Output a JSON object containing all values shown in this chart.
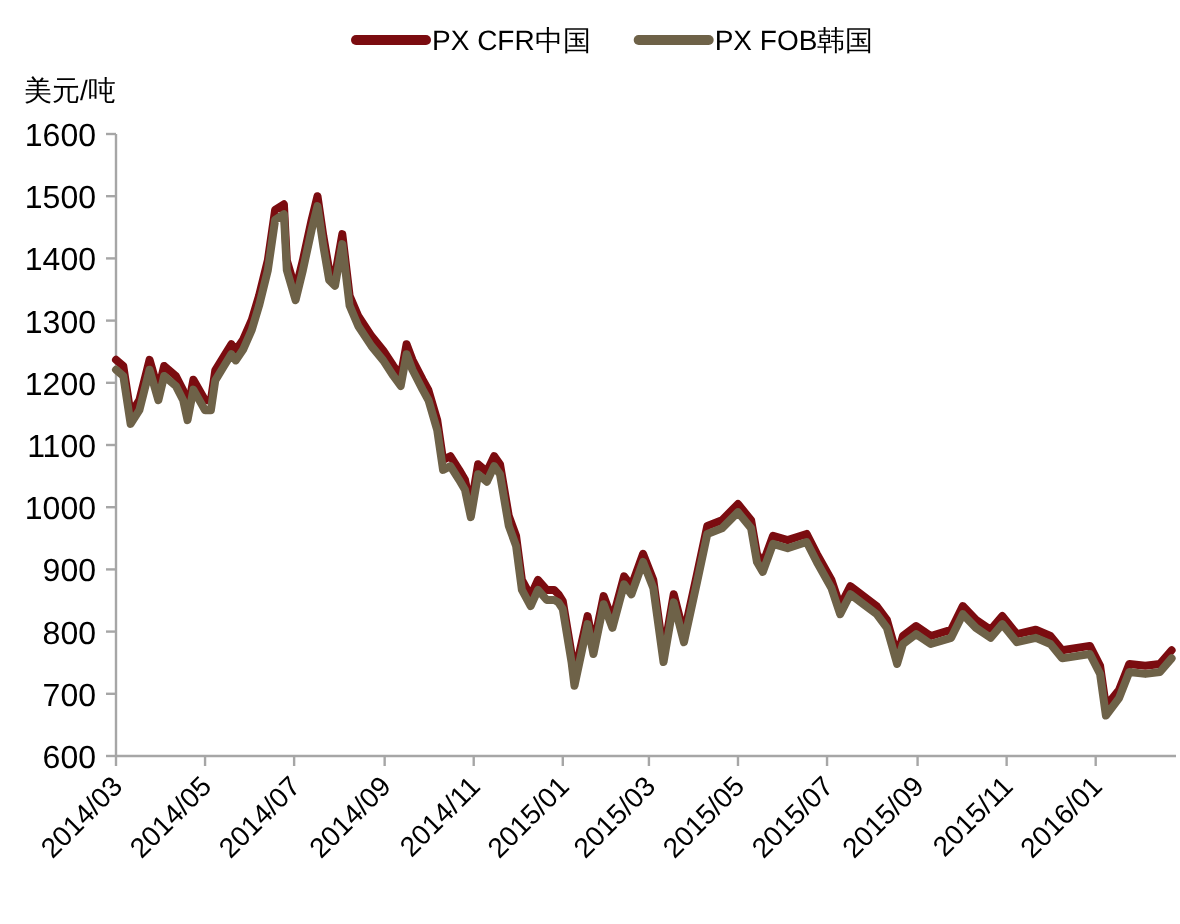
{
  "chart_data": {
    "type": "line",
    "ylabel": "美元/吨",
    "legend": "top",
    "grid": false,
    "x": [
      "2014-03-01",
      "2014-03-06",
      "2014-03-11",
      "2014-03-17",
      "2014-03-24",
      "2014-03-30",
      "2014-04-03",
      "2014-04-11",
      "2014-04-16",
      "2014-04-19",
      "2014-04-23",
      "2014-05-01",
      "2014-05-05",
      "2014-05-08",
      "2014-05-14",
      "2014-05-19",
      "2014-05-22",
      "2014-05-27",
      "2014-06-02",
      "2014-06-07",
      "2014-06-13",
      "2014-06-18",
      "2014-06-24",
      "2014-06-26",
      "2014-07-02",
      "2014-07-07",
      "2014-07-13",
      "2014-07-17",
      "2014-07-21",
      "2014-07-25",
      "2014-07-29",
      "2014-08-03",
      "2014-08-08",
      "2014-08-14",
      "2014-08-23",
      "2014-08-31",
      "2014-09-07",
      "2014-09-12",
      "2014-09-16",
      "2014-09-20",
      "2014-09-27",
      "2014-10-01",
      "2014-10-07",
      "2014-10-11",
      "2014-10-16",
      "2014-10-22",
      "2014-10-26",
      "2014-10-30",
      "2014-11-04",
      "2014-11-10",
      "2014-11-15",
      "2014-11-19",
      "2014-11-25",
      "2014-11-30",
      "2014-12-04",
      "2014-12-10",
      "2014-12-15",
      "2014-12-21",
      "2014-12-26",
      "2014-12-29",
      "2015-01-01",
      "2015-01-07",
      "2015-01-09",
      "2015-01-18",
      "2015-01-22",
      "2015-01-29",
      "2015-02-04",
      "2015-02-12",
      "2015-02-17",
      "2015-02-25",
      "2015-03-04",
      "2015-03-11",
      "2015-03-18",
      "2015-03-25",
      "2015-04-03",
      "2015-04-10",
      "2015-04-20",
      "2015-05-01",
      "2015-05-10",
      "2015-05-14",
      "2015-05-18",
      "2015-05-25",
      "2015-06-04",
      "2015-06-17",
      "2015-06-24",
      "2015-07-04",
      "2015-07-10",
      "2015-07-17",
      "2015-07-26",
      "2015-08-04",
      "2015-08-11",
      "2015-08-18",
      "2015-08-22",
      "2015-08-31",
      "2015-09-10",
      "2015-09-24",
      "2015-10-02",
      "2015-10-11",
      "2015-10-21",
      "2015-10-29",
      "2015-11-08",
      "2015-11-21",
      "2015-12-01",
      "2015-12-09",
      "2015-12-28",
      "2016-01-04",
      "2016-01-08",
      "2016-01-17",
      "2016-01-24",
      "2016-02-04",
      "2016-02-14",
      "2016-02-22"
    ],
    "series": [
      {
        "name": "PX CFR中国",
        "color": "#7b0c10",
        "values": [
          1237,
          1227,
          1150,
          1172,
          1237,
          1188,
          1227,
          1211,
          1188,
          1156,
          1205,
          1172,
          1172,
          1220,
          1243,
          1262,
          1252,
          1269,
          1301,
          1340,
          1397,
          1478,
          1487,
          1397,
          1349,
          1397,
          1462,
          1500,
          1436,
          1381,
          1372,
          1439,
          1340,
          1307,
          1275,
          1252,
          1227,
          1211,
          1262,
          1237,
          1205,
          1188,
          1140,
          1076,
          1082,
          1060,
          1044,
          1000,
          1069,
          1057,
          1082,
          1069,
          986,
          954,
          883,
          857,
          883,
          867,
          867,
          860,
          849,
          764,
          730,
          825,
          777,
          857,
          819,
          889,
          873,
          925,
          883,
          764,
          860,
          796,
          893,
          970,
          979,
          1005,
          979,
          925,
          909,
          954,
          947,
          957,
          925,
          883,
          841,
          873,
          857,
          841,
          819,
          761,
          793,
          809,
          793,
          803,
          841,
          819,
          803,
          825,
          796,
          803,
          793,
          770,
          777,
          745,
          680,
          706,
          748,
          745,
          748,
          770
        ]
      },
      {
        "name": "PX FOB韩国",
        "color": "#6e6248",
        "values": [
          1221,
          1211,
          1134,
          1156,
          1221,
          1172,
          1211,
          1195,
          1172,
          1140,
          1189,
          1156,
          1156,
          1204,
          1227,
          1246,
          1236,
          1253,
          1285,
          1324,
          1381,
          1462,
          1471,
          1381,
          1333,
          1381,
          1446,
          1484,
          1420,
          1365,
          1356,
          1423,
          1324,
          1291,
          1259,
          1236,
          1211,
          1195,
          1246,
          1221,
          1189,
          1172,
          1124,
          1060,
          1066,
          1044,
          1028,
          984,
          1053,
          1041,
          1066,
          1053,
          970,
          938,
          867,
          841,
          867,
          851,
          851,
          847,
          836,
          751,
          713,
          812,
          764,
          844,
          806,
          876,
          860,
          912,
          870,
          751,
          847,
          783,
          880,
          957,
          966,
          992,
          966,
          912,
          896,
          941,
          934,
          944,
          912,
          870,
          828,
          860,
          844,
          828,
          806,
          748,
          780,
          796,
          780,
          790,
          828,
          806,
          790,
          812,
          783,
          790,
          780,
          757,
          764,
          732,
          665,
          693,
          735,
          732,
          735,
          757
        ]
      }
    ],
    "xlim": [
      "2014-03-01",
      "2016-02-25"
    ],
    "xticks": [
      {
        "value": "2014-03-01",
        "label": "2014/03"
      },
      {
        "value": "2014-05-01",
        "label": "2014/05"
      },
      {
        "value": "2014-07-01",
        "label": "2014/07"
      },
      {
        "value": "2014-09-01",
        "label": "2014/09"
      },
      {
        "value": "2014-11-01",
        "label": "2014/11"
      },
      {
        "value": "2015-01-01",
        "label": "2015/01"
      },
      {
        "value": "2015-03-01",
        "label": "2015/03"
      },
      {
        "value": "2015-05-01",
        "label": "2015/05"
      },
      {
        "value": "2015-07-01",
        "label": "2015/07"
      },
      {
        "value": "2015-09-01",
        "label": "2015/09"
      },
      {
        "value": "2015-11-01",
        "label": "2015/11"
      },
      {
        "value": "2016-01-01",
        "label": "2016/01"
      }
    ],
    "ylim": [
      600,
      1600
    ],
    "yticks": [
      600,
      700,
      800,
      900,
      1000,
      1100,
      1200,
      1300,
      1400,
      1500,
      1600
    ]
  }
}
